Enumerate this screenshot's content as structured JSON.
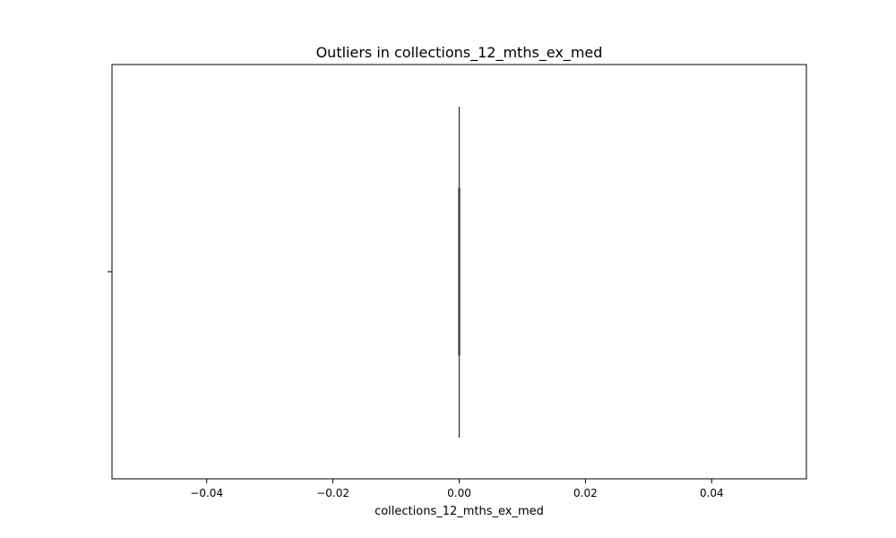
{
  "chart_data": {
    "type": "box",
    "title": "Outliers in collections_12_mths_ex_med",
    "xlabel": "collections_12_mths_ex_med",
    "ylabel": "",
    "xlim": [
      -0.055,
      0.055
    ],
    "xticks": [
      -0.04,
      -0.02,
      0.0,
      0.02,
      0.04
    ],
    "xtick_labels": [
      "−0.04",
      "−0.02",
      "0.00",
      "0.02",
      "0.04"
    ],
    "orientation": "horizontal",
    "grid": false,
    "box": {
      "min": 0,
      "q1": 0,
      "median": 0,
      "q3": 0,
      "max": 0,
      "outliers": []
    },
    "colors": {
      "box_fill": "#3274a1",
      "line": "#3f3f3f",
      "axes": "#000000"
    }
  }
}
